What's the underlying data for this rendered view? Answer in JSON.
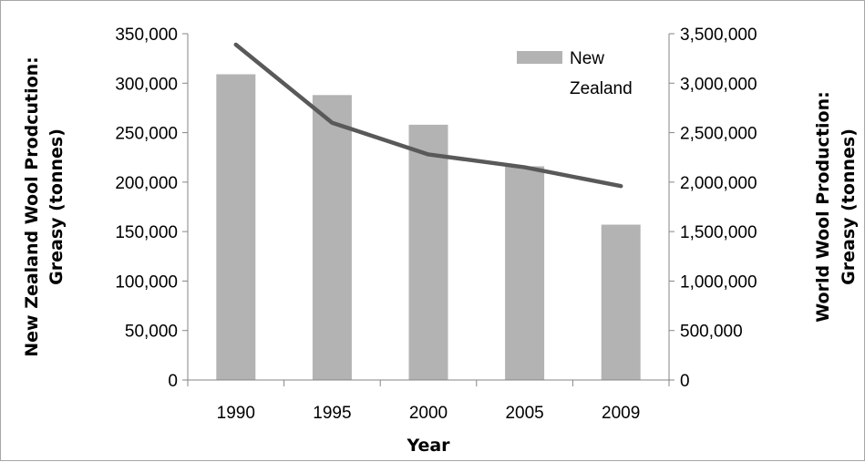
{
  "chart_data": {
    "type": "bar",
    "categories": [
      "1990",
      "1995",
      "2000",
      "2005",
      "2009"
    ],
    "series": [
      {
        "name": "New Zealand",
        "type": "bar",
        "axis": "left",
        "color": "#b3b3b3",
        "values": [
          309000,
          288000,
          258000,
          216000,
          157000
        ]
      },
      {
        "type": "line",
        "axis": "right",
        "color": "#595959",
        "values": [
          3390000,
          2600000,
          2280000,
          2150000,
          1960000
        ]
      }
    ],
    "xlabel": "Year",
    "ylabel": "New Zealand Wool Prodcution: Greasy (tonnes)",
    "ylabel_lines": [
      "New Zealand Wool Prodcution:",
      "Greasy (tonnes)"
    ],
    "y2label": "World Wool Production: Greasy (tonnes)",
    "y2label_lines": [
      "World Wool Production:",
      "Greasy (tonnes)"
    ],
    "ylim": [
      0,
      350000
    ],
    "y2lim": [
      0,
      3500000
    ],
    "yticks": [
      "0",
      "50,000",
      "100,000",
      "150,000",
      "200,000",
      "250,000",
      "300,000",
      "350,000"
    ],
    "y2ticks": [
      "0",
      "500,000",
      "1,000,000",
      "1,500,000",
      "2,000,000",
      "2,500,000",
      "3,000,000",
      "3,500,000"
    ],
    "legend": {
      "position": "top-right",
      "label_lines": [
        "New",
        "Zealand"
      ]
    },
    "grid": false
  }
}
